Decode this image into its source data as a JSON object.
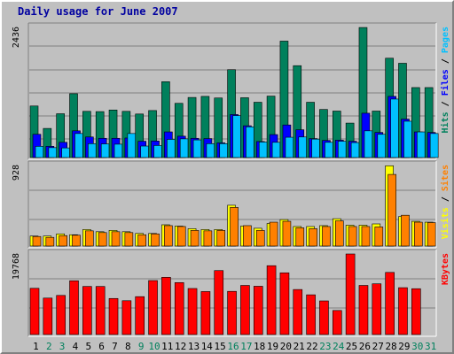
{
  "title": "Daily usage for June 2007",
  "colors": {
    "hits": "#00805c",
    "files": "#0000ff",
    "pages": "#00c0ff",
    "visits": "#ffff00",
    "sites": "#ff8000",
    "kbytes": "#ff0000",
    "label_pages": "#00c0ff",
    "label_files": "#0000ff",
    "label_hits": "#00805c",
    "label_sites": "#ff8000",
    "label_visits": "#ffff00",
    "label_kbytes": "#ff0000",
    "weekend_day": "#00805c",
    "weekday_day": "#000000"
  },
  "chart_data": [
    {
      "type": "bar",
      "categories": [
        "1",
        "2",
        "3",
        "4",
        "5",
        "6",
        "7",
        "8",
        "9",
        "10",
        "11",
        "12",
        "13",
        "14",
        "15",
        "16",
        "17",
        "18",
        "19",
        "20",
        "21",
        "22",
        "23",
        "24",
        "25",
        "26",
        "27",
        "28",
        "29",
        "30",
        "31"
      ],
      "weekend_days": [
        "2",
        "3",
        "9",
        "10",
        "16",
        "17",
        "23",
        "24",
        "30",
        "31"
      ],
      "y_max_label": "2436",
      "ylim": [
        0,
        2436
      ],
      "right_labels": [
        "Pages",
        "Files",
        "Hits"
      ],
      "series": [
        {
          "name": "Hits",
          "color": "#00805c",
          "values": [
            965,
            545,
            820,
            1195,
            865,
            860,
            890,
            865,
            815,
            880,
            1420,
            1015,
            1125,
            1145,
            1115,
            1645,
            1120,
            1035,
            1150,
            2180,
            1720,
            1035,
            900,
            870,
            645,
            2435,
            870,
            1860,
            1765,
            1310,
            1310
          ]
        },
        {
          "name": "Files",
          "color": "#0000ff",
          "values": [
            435,
            210,
            285,
            500,
            385,
            360,
            360,
            365,
            305,
            310,
            480,
            400,
            360,
            355,
            275,
            805,
            595,
            300,
            430,
            610,
            520,
            355,
            320,
            325,
            305,
            830,
            470,
            1145,
            720,
            480,
            470
          ]
        },
        {
          "name": "Pages",
          "color": "#00c0ff",
          "values": [
            210,
            185,
            180,
            450,
            260,
            255,
            250,
            450,
            215,
            225,
            340,
            350,
            330,
            260,
            260,
            785,
            575,
            290,
            285,
            380,
            385,
            345,
            285,
            305,
            280,
            500,
            435,
            1095,
            680,
            480,
            450
          ]
        }
      ]
    },
    {
      "type": "bar",
      "categories": [
        "1",
        "2",
        "3",
        "4",
        "5",
        "6",
        "7",
        "8",
        "9",
        "10",
        "11",
        "12",
        "13",
        "14",
        "15",
        "16",
        "17",
        "18",
        "19",
        "20",
        "21",
        "22",
        "23",
        "24",
        "25",
        "26",
        "27",
        "28",
        "29",
        "30",
        "31"
      ],
      "y_max_label": "928",
      "ylim": [
        0,
        928
      ],
      "right_labels": [
        "Sites",
        "Visits"
      ],
      "series": [
        {
          "name": "Visits",
          "color": "#ffff00",
          "values": [
            115,
            115,
            140,
            130,
            190,
            165,
            180,
            165,
            145,
            145,
            245,
            230,
            200,
            190,
            190,
            470,
            230,
            205,
            260,
            305,
            225,
            225,
            235,
            315,
            240,
            240,
            255,
            925,
            340,
            285,
            275
          ]
        },
        {
          "name": "Sites",
          "color": "#ff8000",
          "values": [
            110,
            100,
            120,
            125,
            175,
            155,
            165,
            155,
            130,
            140,
            235,
            225,
            180,
            175,
            180,
            445,
            235,
            180,
            275,
            285,
            210,
            200,
            225,
            290,
            225,
            225,
            220,
            825,
            355,
            275,
            270
          ]
        }
      ]
    },
    {
      "type": "bar",
      "categories": [
        "1",
        "2",
        "3",
        "4",
        "5",
        "6",
        "7",
        "8",
        "9",
        "10",
        "11",
        "12",
        "13",
        "14",
        "15",
        "16",
        "17",
        "18",
        "19",
        "20",
        "21",
        "22",
        "23",
        "24",
        "25",
        "26",
        "27",
        "28",
        "29",
        "30",
        "31"
      ],
      "y_max_label": "19768",
      "ylim": [
        0,
        19768
      ],
      "right_labels": [
        "KBytes"
      ],
      "series": [
        {
          "name": "KBytes",
          "color": "#ff0000",
          "values": [
            11350,
            8950,
            9600,
            13200,
            11800,
            11800,
            8850,
            8300,
            9300,
            13250,
            14050,
            12750,
            11300,
            10550,
            15700,
            10600,
            12050,
            11850,
            16900,
            15150,
            11050,
            9750,
            8250,
            5900,
            19768,
            12050,
            12450,
            15250,
            11500,
            11250,
            0
          ]
        }
      ]
    }
  ]
}
